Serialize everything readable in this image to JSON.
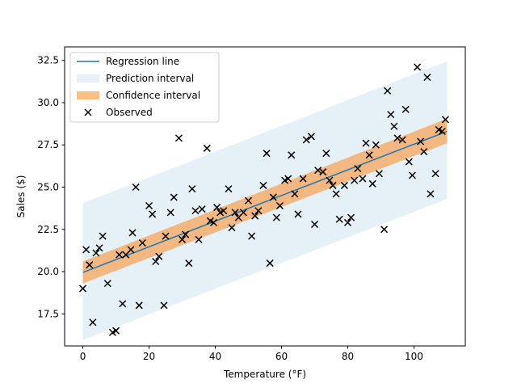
{
  "chart_data": {
    "type": "scatter",
    "title": "",
    "xlabel": "Temperature (°F)",
    "ylabel": "Sales ($)",
    "xlim": [
      -5.5,
      115.5
    ],
    "ylim": [
      15.6,
      33.3
    ],
    "x_ticks": [
      0,
      20,
      40,
      60,
      80,
      100
    ],
    "y_ticks": [
      17.5,
      20.0,
      22.5,
      25.0,
      27.5,
      30.0,
      32.5
    ],
    "y_tick_labels": [
      "17.5",
      "20.0",
      "22.5",
      "25.0",
      "27.5",
      "30.0",
      "32.5"
    ],
    "grid": false,
    "legend_position": "upper-left",
    "legend": [
      "Regression line",
      "Prediction interval",
      "Confidence interval",
      "Observed"
    ],
    "colors": {
      "regression": "#1f77b4",
      "prediction": "#1f77b4",
      "confidence": "#ff7f0e",
      "observed": "#000000"
    },
    "regression": {
      "x": [
        0,
        110
      ],
      "y": [
        19.95,
        28.3
      ]
    },
    "prediction_interval": {
      "x": [
        0,
        110
      ],
      "lower": [
        15.95,
        24.3
      ],
      "upper": [
        24.05,
        32.45
      ]
    },
    "confidence_interval": {
      "x": [
        0,
        110
      ],
      "lower": [
        19.3,
        27.6
      ],
      "upper": [
        20.6,
        29.05
      ]
    },
    "observed": [
      [
        0,
        19.0
      ],
      [
        1,
        21.3
      ],
      [
        2,
        20.4
      ],
      [
        3,
        17.0
      ],
      [
        4,
        21.1
      ],
      [
        5,
        21.4
      ],
      [
        6,
        22.1
      ],
      [
        7.5,
        19.3
      ],
      [
        9,
        16.4
      ],
      [
        10,
        16.5
      ],
      [
        11,
        21.0
      ],
      [
        12,
        18.1
      ],
      [
        13,
        21.0
      ],
      [
        14.5,
        21.3
      ],
      [
        15,
        22.3
      ],
      [
        16,
        25.0
      ],
      [
        17,
        18.0
      ],
      [
        18,
        21.7
      ],
      [
        20,
        23.9
      ],
      [
        21,
        23.4
      ],
      [
        22,
        20.6
      ],
      [
        23,
        20.9
      ],
      [
        24.5,
        18.0
      ],
      [
        25,
        22.1
      ],
      [
        26.5,
        23.5
      ],
      [
        27.5,
        24.4
      ],
      [
        29,
        27.9
      ],
      [
        30,
        21.9
      ],
      [
        31,
        22.2
      ],
      [
        32,
        20.5
      ],
      [
        33,
        24.9
      ],
      [
        34,
        23.6
      ],
      [
        35,
        21.9
      ],
      [
        36,
        23.7
      ],
      [
        37.5,
        27.3
      ],
      [
        38.5,
        23.0
      ],
      [
        39.5,
        22.9
      ],
      [
        40.5,
        23.8
      ],
      [
        41.5,
        23.5
      ],
      [
        42.5,
        23.6
      ],
      [
        44,
        24.9
      ],
      [
        45,
        22.6
      ],
      [
        46,
        23.5
      ],
      [
        47,
        23.2
      ],
      [
        48.5,
        23.5
      ],
      [
        50,
        24.2
      ],
      [
        51,
        22.1
      ],
      [
        52,
        23.3
      ],
      [
        53,
        23.6
      ],
      [
        54.5,
        25.1
      ],
      [
        55.5,
        27.0
      ],
      [
        56.5,
        20.5
      ],
      [
        57.5,
        24.4
      ],
      [
        58.5,
        23.2
      ],
      [
        59.5,
        23.9
      ],
      [
        61,
        25.4
      ],
      [
        62,
        25.5
      ],
      [
        63,
        26.9
      ],
      [
        64,
        24.6
      ],
      [
        65,
        23.4
      ],
      [
        66.5,
        25.5
      ],
      [
        67.5,
        27.8
      ],
      [
        69,
        28.0
      ],
      [
        70,
        22.8
      ],
      [
        71,
        26.0
      ],
      [
        72.5,
        25.9
      ],
      [
        73.5,
        27.0
      ],
      [
        74.5,
        25.4
      ],
      [
        75.5,
        25.1
      ],
      [
        76.5,
        24.6
      ],
      [
        77.5,
        23.1
      ],
      [
        79,
        25.1
      ],
      [
        80,
        22.9
      ],
      [
        81,
        23.2
      ],
      [
        82,
        25.4
      ],
      [
        83,
        26.1
      ],
      [
        84.5,
        25.5
      ],
      [
        85.5,
        27.6
      ],
      [
        86.5,
        26.9
      ],
      [
        87.5,
        25.2
      ],
      [
        88.5,
        27.5
      ],
      [
        89.5,
        25.8
      ],
      [
        91,
        22.5
      ],
      [
        92,
        30.7
      ],
      [
        93,
        29.3
      ],
      [
        94,
        28.6
      ],
      [
        95,
        27.9
      ],
      [
        96.5,
        27.8
      ],
      [
        97.5,
        29.6
      ],
      [
        98.5,
        26.5
      ],
      [
        99.5,
        25.7
      ],
      [
        101,
        32.1
      ],
      [
        102,
        27.7
      ],
      [
        103,
        27.1
      ],
      [
        104,
        31.5
      ],
      [
        105,
        24.6
      ],
      [
        106.5,
        25.8
      ],
      [
        107.5,
        28.4
      ],
      [
        108.5,
        28.3
      ],
      [
        109.5,
        29.0
      ]
    ]
  }
}
